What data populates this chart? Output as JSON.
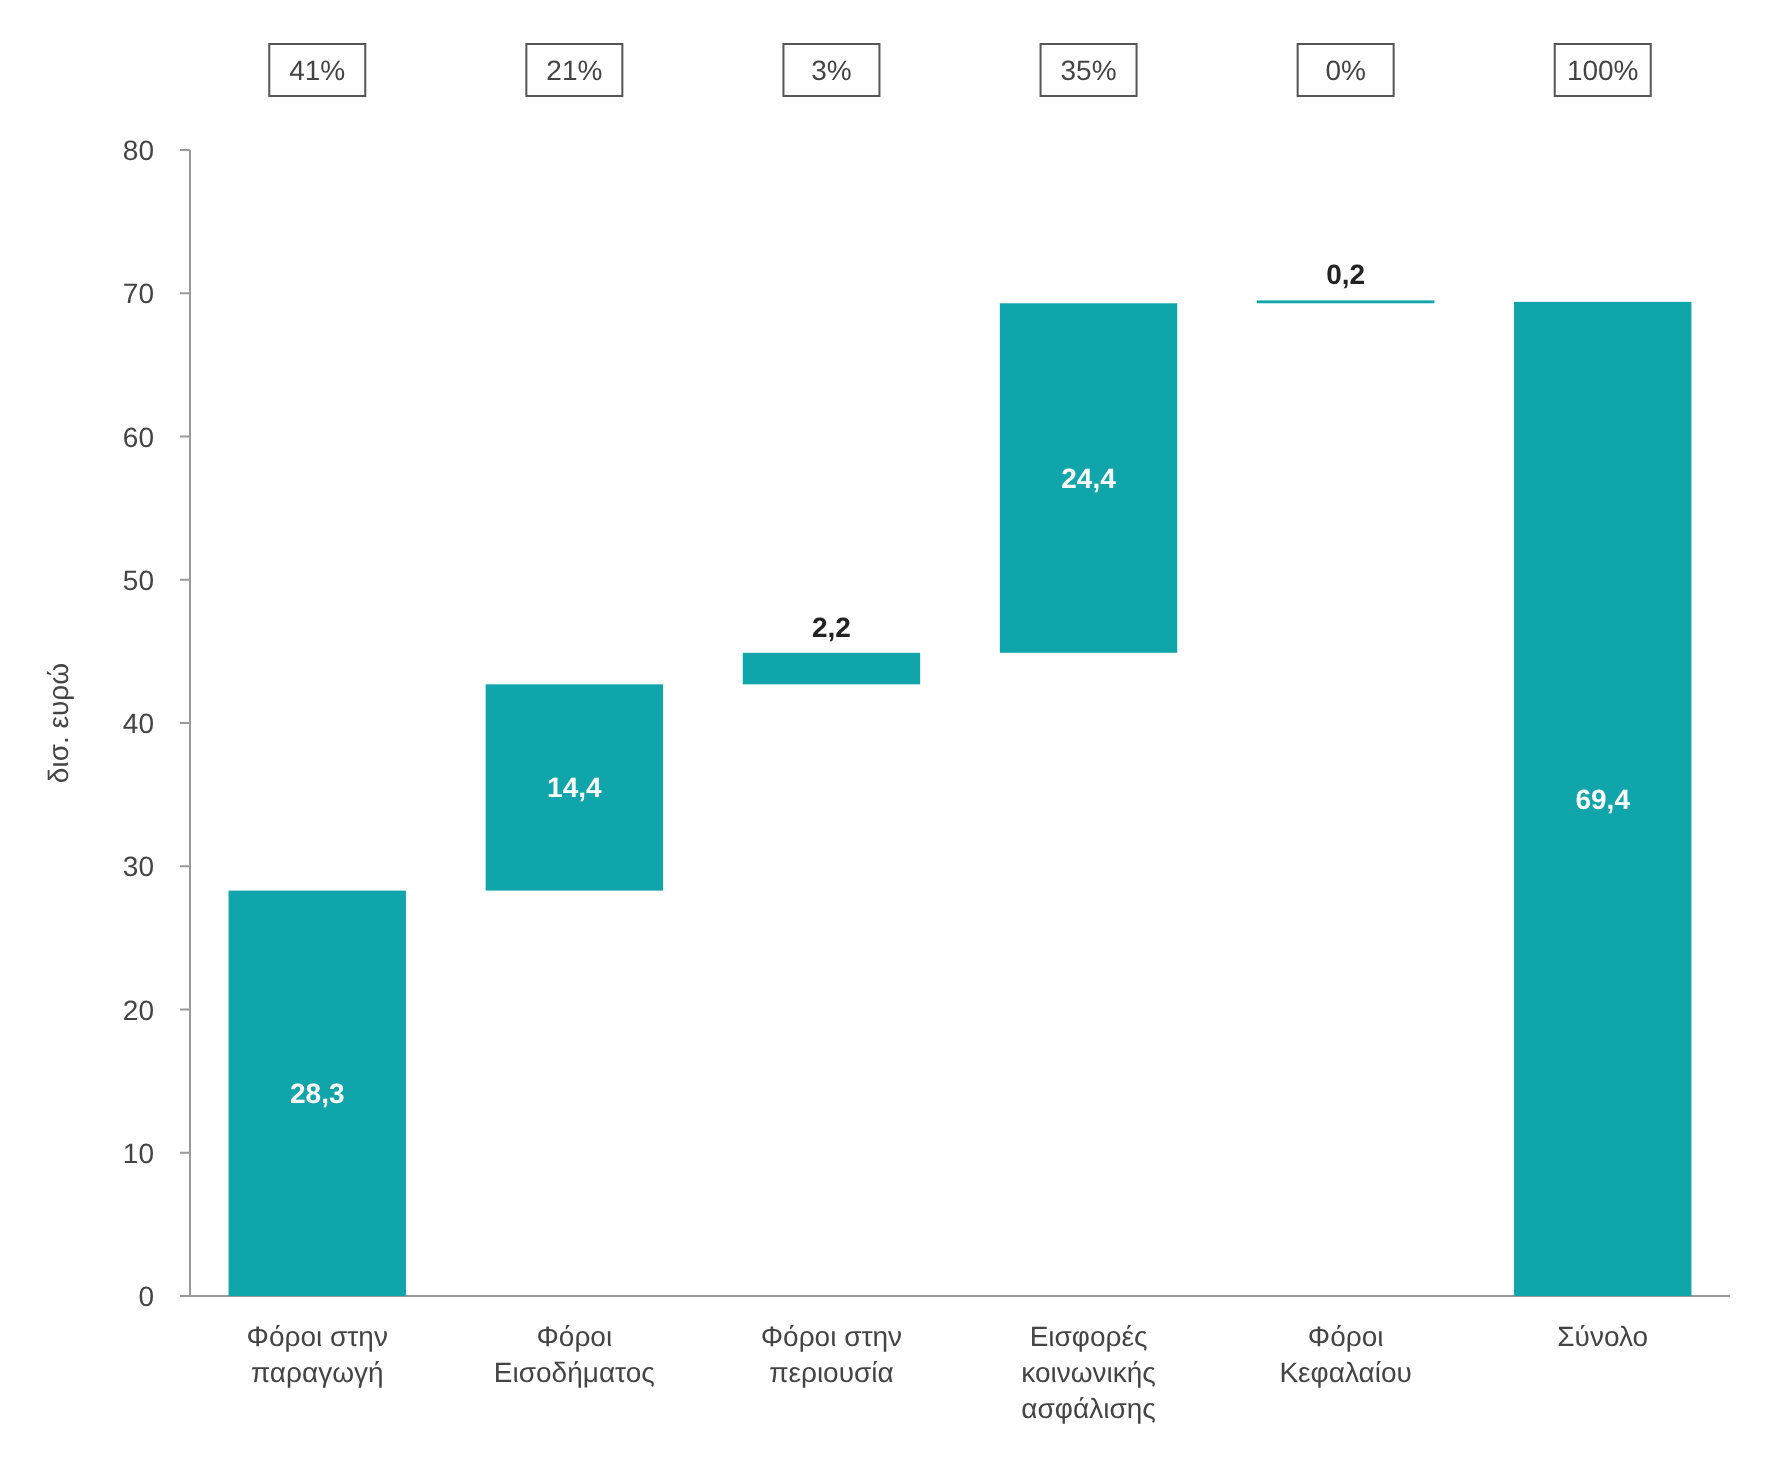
{
  "chart_data": {
    "type": "bar",
    "ylabel": "δισ. ευρώ",
    "categories": [
      "Φόροι στην παραγωγή",
      "Φόροι Εισοδήματος",
      "Φόροι στην περιουσία",
      "Εισφορές κοινωνικής ασφάλισης",
      "Φόροι Κεφαλαίου",
      "Σύνολο"
    ],
    "values": [
      28.3,
      14.4,
      2.2,
      24.4,
      0.2,
      69.4
    ],
    "base": [
      0,
      28.3,
      42.7,
      44.9,
      69.3,
      0
    ],
    "value_labels": [
      "28,3",
      "14,4",
      "2,2",
      "24,4",
      "0,2",
      "69,4"
    ],
    "color": "#10a5aa",
    "ylim": [
      0,
      80
    ],
    "yticks": [
      0,
      10,
      20,
      30,
      40,
      50,
      60,
      70,
      80
    ],
    "annotations": [
      "41%",
      "21%",
      "3%",
      "35%",
      "0%",
      "100%"
    ],
    "grid": false
  }
}
